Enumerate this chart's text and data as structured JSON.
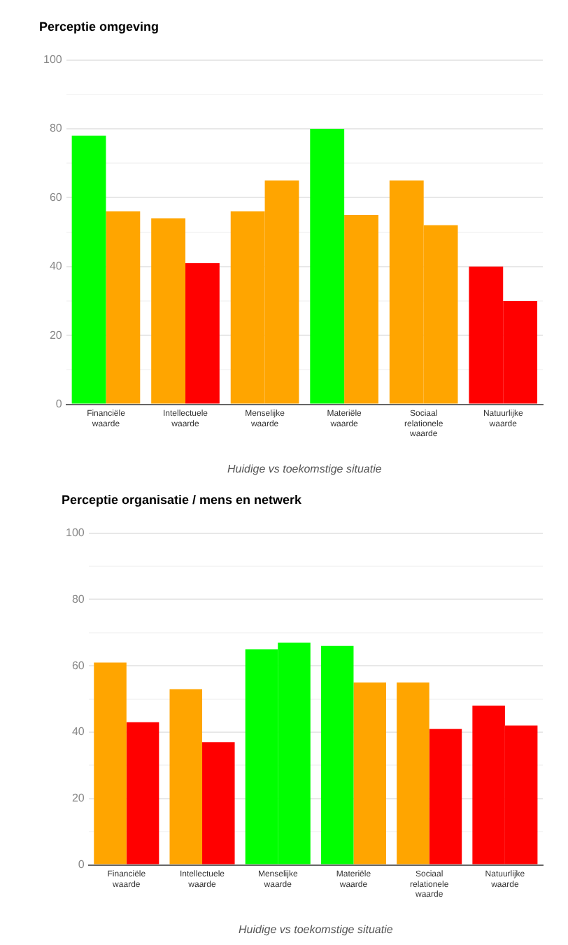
{
  "chart_data": [
    {
      "type": "bar",
      "title": "Perceptie omgeving",
      "xlabel": "Huidige vs toekomstige situatie",
      "categories": [
        "Financiële waarde",
        "Intellectuele waarde",
        "Menselijke waarde",
        "Materiële waarde",
        "Sociaal relationele waarde",
        "Natuurlijke waarde"
      ],
      "series": [
        {
          "colors": [
            "#00ff00",
            "#ffa500",
            "#ffa500",
            "#00ff00",
            "#ffa500",
            "#ff0000"
          ],
          "values": [
            78,
            54,
            56,
            80,
            65,
            40
          ]
        },
        {
          "colors": [
            "#ffa500",
            "#ff0000",
            "#ffa500",
            "#ffa500",
            "#ffa500",
            "#ff0000"
          ],
          "values": [
            56,
            41,
            65,
            55,
            52,
            30
          ]
        }
      ],
      "ylim": [
        0,
        100
      ],
      "yticks": [
        0,
        {
          "value": 10,
          "label": null
        },
        20,
        {
          "value": 30,
          "label": null
        },
        40,
        {
          "value": 50,
          "label": null
        },
        60,
        {
          "value": 70,
          "label": null
        },
        80,
        {
          "value": 90,
          "label": null
        },
        100
      ],
      "grid": "y",
      "legend": false
    },
    {
      "type": "bar",
      "title": "Perceptie organisatie / mens en netwerk",
      "xlabel": "Huidige vs toekomstige situatie",
      "categories": [
        "Financiële waarde",
        "Intellectuele waarde",
        "Menselijke waarde",
        "Materiële waarde",
        "Sociaal relationele waarde",
        "Natuurlijke waarde"
      ],
      "series": [
        {
          "colors": [
            "#ffa500",
            "#ffa500",
            "#00ff00",
            "#00ff00",
            "#ffa500",
            "#ff0000"
          ],
          "values": [
            61,
            53,
            65,
            66,
            55,
            48
          ]
        },
        {
          "colors": [
            "#ff0000",
            "#ff0000",
            "#00ff00",
            "#ffa500",
            "#ff0000",
            "#ff0000"
          ],
          "values": [
            43,
            37,
            67,
            55,
            41,
            42
          ]
        }
      ],
      "ylim": [
        0,
        100
      ],
      "yticks": [
        0,
        {
          "value": 10,
          "label": null
        },
        20,
        {
          "value": 30,
          "label": null
        },
        40,
        {
          "value": 50,
          "label": null
        },
        60,
        {
          "value": 70,
          "label": null
        },
        80,
        {
          "value": 90,
          "label": null
        },
        100
      ],
      "grid": "y",
      "legend": false
    }
  ]
}
